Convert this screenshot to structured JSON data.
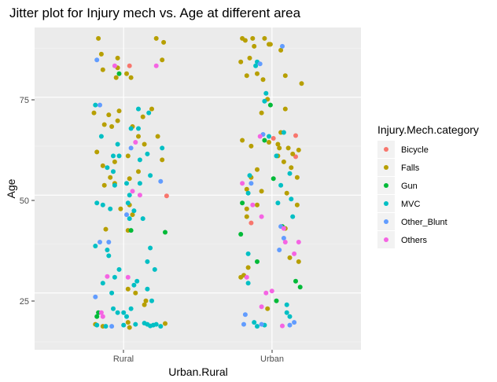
{
  "chart_data": {
    "type": "scatter",
    "title": "Jitter plot for Injury mech vs. Age at different area",
    "xlabel": "Urban.Rural",
    "ylabel": "Age",
    "categories": [
      "Rural",
      "Urban"
    ],
    "ylim": [
      10.5,
      92.8
    ],
    "yticks": [
      "25",
      "50",
      "75"
    ],
    "grid": true,
    "legend": {
      "title": "Injury.Mech.category",
      "position": "right",
      "entries": [
        "Bicycle",
        "Falls",
        "Gun",
        "MVC",
        "Other_Blunt",
        "Others"
      ]
    },
    "colors": {
      "Bicycle": "#F8766D",
      "Falls": "#B79F00",
      "Gun": "#00BA38",
      "MVC": "#00BFC4",
      "Other_Blunt": "#619CFF",
      "Others": "#F564E3",
      "panel": "#EBEBEB",
      "grid": "#FFFFFF"
    },
    "series": [
      {
        "name": "Bicycle",
        "points": [
          [
            2.01,
            64.5
          ],
          [
            1.04,
            83
          ],
          [
            1.29,
            49.8
          ],
          [
            1.86,
            42.9
          ],
          [
            2.16,
            65.2
          ],
          [
            2.16,
            59.8
          ]
        ]
      },
      {
        "name": "Falls",
        "points": [
          [
            0.83,
            90
          ],
          [
            0.85,
            86
          ],
          [
            0.96,
            85
          ],
          [
            0.96,
            82.5
          ],
          [
            1.02,
            81
          ],
          [
            1.05,
            80
          ],
          [
            0.86,
            82
          ],
          [
            1.22,
            90
          ],
          [
            1.27,
            89
          ],
          [
            1.26,
            84.5
          ],
          [
            0.95,
            80
          ],
          [
            0.8,
            71
          ],
          [
            0.9,
            70.5
          ],
          [
            0.97,
            71.5
          ],
          [
            1.13,
            70
          ],
          [
            1.19,
            72
          ],
          [
            0.87,
            68
          ],
          [
            0.92,
            67.5
          ],
          [
            0.96,
            69
          ],
          [
            1.06,
            67.5
          ],
          [
            1.1,
            65
          ],
          [
            1.03,
            60
          ],
          [
            0.82,
            61
          ],
          [
            0.86,
            57.5
          ],
          [
            0.91,
            54.5
          ],
          [
            0.87,
            52.5
          ],
          [
            0.94,
            53
          ],
          [
            0.94,
            58.5
          ],
          [
            1.04,
            54.2
          ],
          [
            1.1,
            56
          ],
          [
            1.26,
            59
          ],
          [
            1.23,
            65
          ],
          [
            1.14,
            63
          ],
          [
            0.98,
            46.5
          ],
          [
            1.03,
            41
          ],
          [
            1.04,
            47.5
          ],
          [
            1.06,
            45
          ],
          [
            0.88,
            41.3
          ],
          [
            1.03,
            26
          ],
          [
            1.08,
            25
          ],
          [
            1.15,
            23
          ],
          [
            1.03,
            17.5
          ],
          [
            0.81,
            17
          ],
          [
            1.14,
            22
          ],
          [
            1.28,
            17.2
          ],
          [
            1.04,
            16.2
          ],
          [
            0.86,
            16.5
          ],
          [
            1.8,
            90
          ],
          [
            1.82,
            89.5
          ],
          [
            1.87,
            90
          ],
          [
            1.95,
            90
          ],
          [
            1.88,
            88
          ],
          [
            1.98,
            88.5
          ],
          [
            1.79,
            84
          ],
          [
            1.83,
            80.5
          ],
          [
            1.9,
            81
          ],
          [
            1.85,
            85
          ],
          [
            2.06,
            87
          ],
          [
            2.09,
            80.5
          ],
          [
            2.2,
            78.5
          ],
          [
            1.99,
            88.5
          ],
          [
            1.94,
            79.5
          ],
          [
            2.09,
            72
          ],
          [
            1.97,
            74.5
          ],
          [
            1.93,
            71
          ],
          [
            1.98,
            63.5
          ],
          [
            2.04,
            63
          ],
          [
            2.06,
            66
          ],
          [
            2.11,
            62
          ],
          [
            2.14,
            60.5
          ],
          [
            2.18,
            61.5
          ],
          [
            2.08,
            58.5
          ],
          [
            2.13,
            57
          ],
          [
            2.04,
            60
          ],
          [
            2.05,
            62
          ],
          [
            1.86,
            62.5
          ],
          [
            1.8,
            64
          ],
          [
            1.9,
            56.5
          ],
          [
            1.86,
            54.5
          ],
          [
            1.83,
            51.5
          ],
          [
            1.9,
            47.5
          ],
          [
            1.83,
            46.5
          ],
          [
            1.83,
            44.5
          ],
          [
            1.79,
            29
          ],
          [
            1.81,
            29.5
          ],
          [
            1.84,
            31.5
          ],
          [
            1.97,
            21
          ],
          [
            2.17,
            47.5
          ],
          [
            2.17,
            54.5
          ],
          [
            1.93,
            51
          ],
          [
            2.1,
            50.5
          ],
          [
            2.12,
            34
          ],
          [
            2.09,
            41.5
          ],
          [
            2.18,
            33
          ]
        ]
      },
      {
        "name": "Gun",
        "points": [
          [
            0.97,
            81
          ],
          [
            0.82,
            19
          ],
          [
            0.83,
            20
          ],
          [
            1.05,
            41
          ],
          [
            1.28,
            40.5
          ],
          [
            1.79,
            40
          ],
          [
            1.99,
            73
          ],
          [
            1.95,
            64
          ],
          [
            2.01,
            54.2
          ],
          [
            1.8,
            48
          ],
          [
            2.07,
            42
          ],
          [
            1.9,
            33
          ],
          [
            2.03,
            23
          ],
          [
            2.16,
            28
          ],
          [
            2.19,
            26.5
          ]
        ]
      },
      {
        "name": "MVC",
        "points": [
          [
            1.1,
            72
          ],
          [
            1.17,
            71
          ],
          [
            1.1,
            67
          ],
          [
            0.81,
            73
          ],
          [
            1.05,
            67
          ],
          [
            0.85,
            65
          ],
          [
            0.96,
            63
          ],
          [
            0.93,
            60
          ],
          [
            0.97,
            60
          ],
          [
            0.89,
            57
          ],
          [
            1.11,
            59
          ],
          [
            1.26,
            62
          ],
          [
            1.16,
            60.5
          ],
          [
            1.18,
            55
          ],
          [
            0.93,
            56
          ],
          [
            0.94,
            52.5
          ],
          [
            1.02,
            53
          ],
          [
            1.11,
            53
          ],
          [
            1.04,
            50
          ],
          [
            1.03,
            48
          ],
          [
            1.07,
            46
          ],
          [
            1.04,
            44
          ],
          [
            1.13,
            44
          ],
          [
            0.82,
            48
          ],
          [
            0.86,
            47.5
          ],
          [
            0.91,
            46.5
          ],
          [
            0.81,
            37
          ],
          [
            0.89,
            36
          ],
          [
            0.9,
            34.5
          ],
          [
            0.97,
            31
          ],
          [
            0.86,
            27.5
          ],
          [
            0.94,
            29
          ],
          [
            0.92,
            25
          ],
          [
            1.07,
            27
          ],
          [
            1.09,
            28
          ],
          [
            1.16,
            33
          ],
          [
            1.21,
            31
          ],
          [
            1.18,
            36.5
          ],
          [
            1.16,
            26
          ],
          [
            1.19,
            23
          ],
          [
            1.0,
            20
          ],
          [
            1.02,
            19
          ],
          [
            1.05,
            21
          ],
          [
            1.08,
            17
          ],
          [
            1.14,
            17.3
          ],
          [
            1.16,
            17
          ],
          [
            1.18,
            16.6
          ],
          [
            1.2,
            16.8
          ],
          [
            1.22,
            17
          ],
          [
            1.25,
            16.5
          ],
          [
            0.88,
            16.5
          ],
          [
            0.93,
            21
          ],
          [
            0.96,
            20
          ],
          [
            1.0,
            16.8
          ],
          [
            0.82,
            16.8
          ],
          [
            1.89,
            83
          ],
          [
            1.9,
            84
          ],
          [
            2.08,
            66
          ],
          [
            2.12,
            55.5
          ],
          [
            1.95,
            74
          ],
          [
            1.96,
            76
          ],
          [
            1.98,
            65
          ],
          [
            2.03,
            60
          ],
          [
            2.06,
            52.5
          ],
          [
            2.04,
            48
          ],
          [
            1.84,
            50.5
          ],
          [
            1.85,
            55
          ],
          [
            2.13,
            49
          ],
          [
            2.14,
            44.5
          ],
          [
            1.84,
            35
          ],
          [
            1.84,
            27.5
          ],
          [
            2.1,
            22
          ],
          [
            2.1,
            20
          ],
          [
            2.12,
            19
          ],
          [
            1.88,
            17.5
          ],
          [
            1.9,
            16.5
          ],
          [
            1.95,
            16.8
          ]
        ]
      },
      {
        "name": "Other_Blunt",
        "points": [
          [
            0.82,
            84.5
          ],
          [
            0.84,
            73
          ],
          [
            1.05,
            62
          ],
          [
            1.25,
            53.5
          ],
          [
            1.02,
            45
          ],
          [
            0.84,
            38
          ],
          [
            0.9,
            38
          ],
          [
            0.92,
            16.5
          ],
          [
            0.81,
            24
          ],
          [
            1.92,
            83.5
          ],
          [
            2.07,
            88
          ],
          [
            1.94,
            65.5
          ],
          [
            1.86,
            53
          ],
          [
            2.06,
            42
          ],
          [
            2.08,
            39
          ],
          [
            2.05,
            36
          ],
          [
            1.81,
            17
          ],
          [
            1.82,
            19.5
          ],
          [
            1.93,
            17
          ],
          [
            2.12,
            16.8
          ],
          [
            2.15,
            17.5
          ]
        ]
      },
      {
        "name": "Others",
        "points": [
          [
            1.22,
            83
          ],
          [
            0.94,
            83
          ],
          [
            1.08,
            63.5
          ],
          [
            1.06,
            51
          ],
          [
            1.11,
            50
          ],
          [
            1.03,
            29
          ],
          [
            0.89,
            29.2
          ],
          [
            0.85,
            20
          ],
          [
            0.86,
            19
          ],
          [
            1.92,
            65
          ],
          [
            1.8,
            53
          ],
          [
            1.87,
            47.5
          ],
          [
            1.93,
            44.5
          ],
          [
            2.08,
            41.5
          ],
          [
            2.15,
            35
          ],
          [
            2.18,
            38
          ],
          [
            2.09,
            38
          ],
          [
            1.83,
            29
          ],
          [
            1.96,
            25
          ],
          [
            2.0,
            25.5
          ],
          [
            1.93,
            21.5
          ],
          [
            2.07,
            16.6
          ]
        ]
      }
    ]
  }
}
